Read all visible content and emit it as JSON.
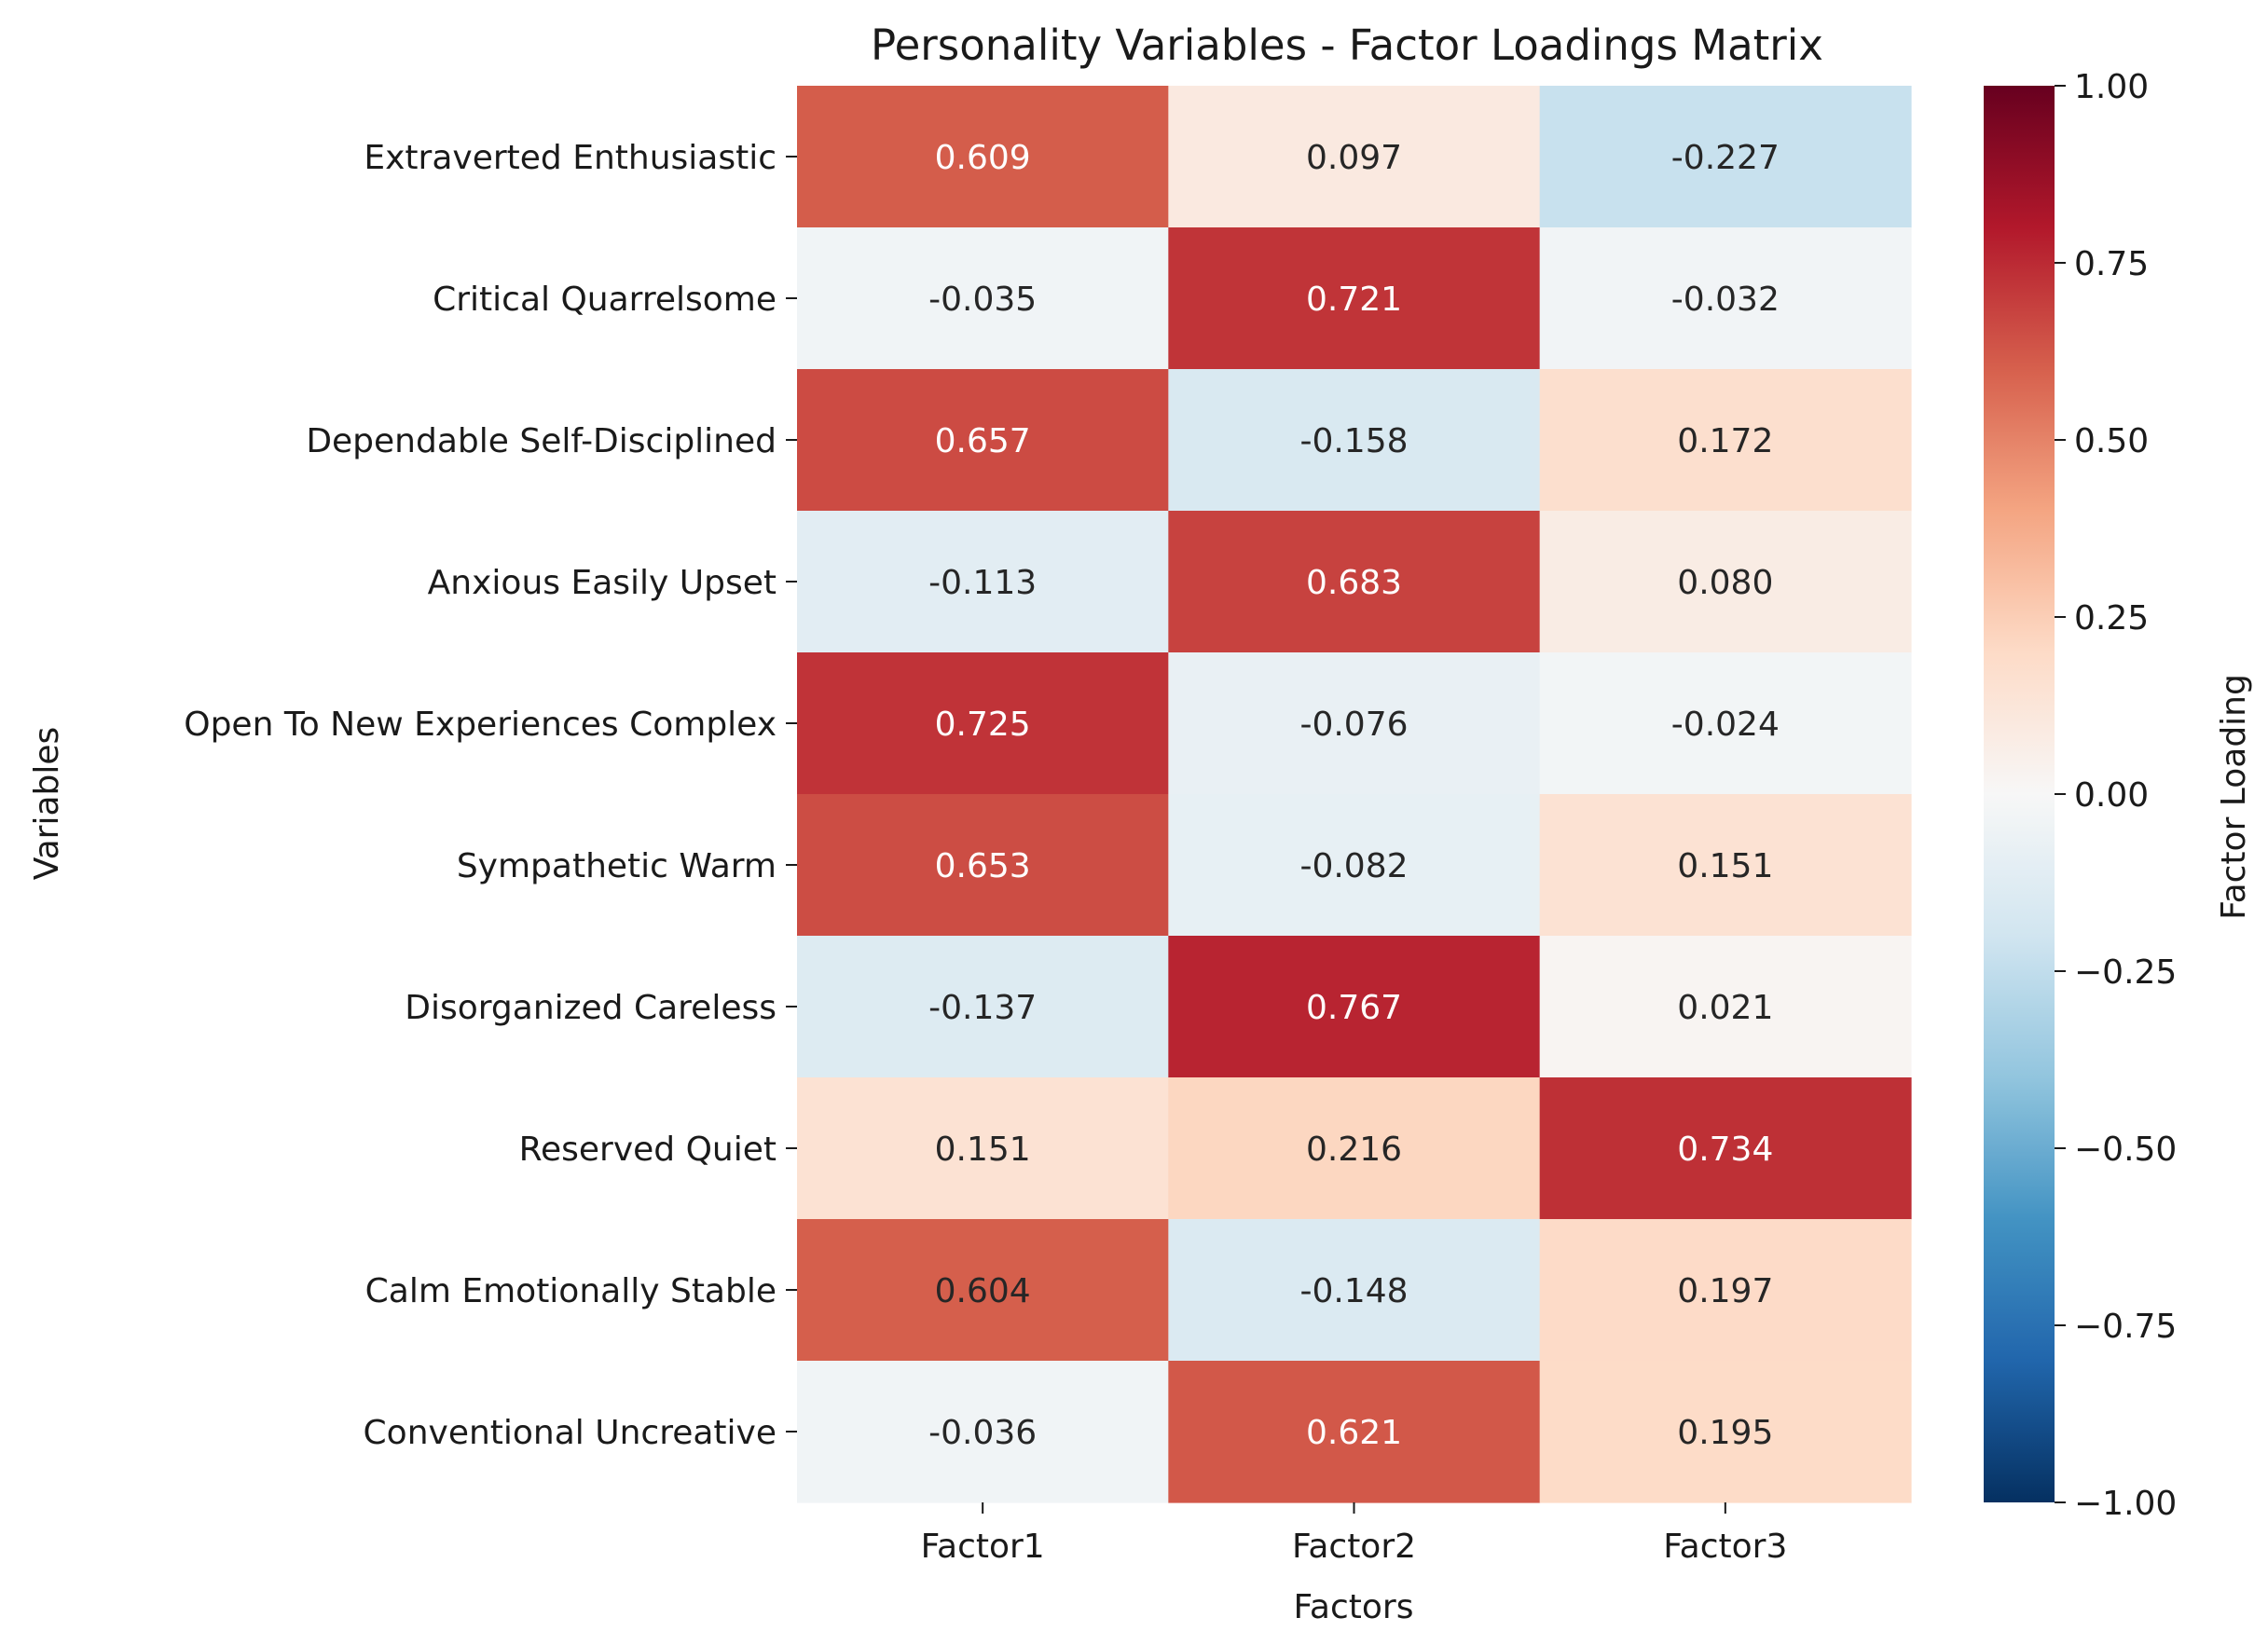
{
  "chart_data": {
    "type": "heatmap",
    "title": "Personality Variables - Factor Loadings Matrix",
    "xlabel": "Factors",
    "ylabel": "Variables",
    "colorbar_label": "Factor Loading",
    "colormap": "RdBu_r",
    "vmin": -1.0,
    "vmax": 1.0,
    "colorbar_ticks": [
      "1.00",
      "0.75",
      "0.50",
      "0.25",
      "0.00",
      "−0.25",
      "−0.50",
      "−0.75",
      "−1.00"
    ],
    "colorbar_tick_values": [
      1.0,
      0.75,
      0.5,
      0.25,
      0.0,
      -0.25,
      -0.5,
      -0.75,
      -1.0
    ],
    "columns": [
      "Factor1",
      "Factor2",
      "Factor3"
    ],
    "rows": [
      "Extraverted Enthusiastic",
      "Critical Quarrelsome",
      "Dependable Self-Disciplined",
      "Anxious Easily Upset",
      "Open To New Experiences Complex",
      "Sympathetic Warm",
      "Disorganized Careless",
      "Reserved Quiet",
      "Calm Emotionally Stable",
      "Conventional Uncreative"
    ],
    "values": [
      [
        0.609,
        0.097,
        -0.227
      ],
      [
        -0.035,
        0.721,
        -0.032
      ],
      [
        0.657,
        -0.158,
        0.172
      ],
      [
        -0.113,
        0.683,
        0.08
      ],
      [
        0.725,
        -0.076,
        -0.024
      ],
      [
        0.653,
        -0.082,
        0.151
      ],
      [
        -0.137,
        0.767,
        0.021
      ],
      [
        0.151,
        0.216,
        0.734
      ],
      [
        0.604,
        -0.148,
        0.197
      ],
      [
        -0.036,
        0.621,
        0.195
      ]
    ],
    "cell_labels": [
      [
        "0.609",
        "0.097",
        "-0.227"
      ],
      [
        "-0.035",
        "0.721",
        "-0.032"
      ],
      [
        "0.657",
        "-0.158",
        "0.172"
      ],
      [
        "-0.113",
        "0.683",
        "0.080"
      ],
      [
        "0.725",
        "-0.076",
        "-0.024"
      ],
      [
        "0.653",
        "-0.082",
        "0.151"
      ],
      [
        "-0.137",
        "0.767",
        "0.021"
      ],
      [
        "0.151",
        "0.216",
        "0.734"
      ],
      [
        "0.604",
        "-0.148",
        "0.197"
      ],
      [
        "-0.036",
        "0.621",
        "0.195"
      ]
    ],
    "grid": false
  }
}
